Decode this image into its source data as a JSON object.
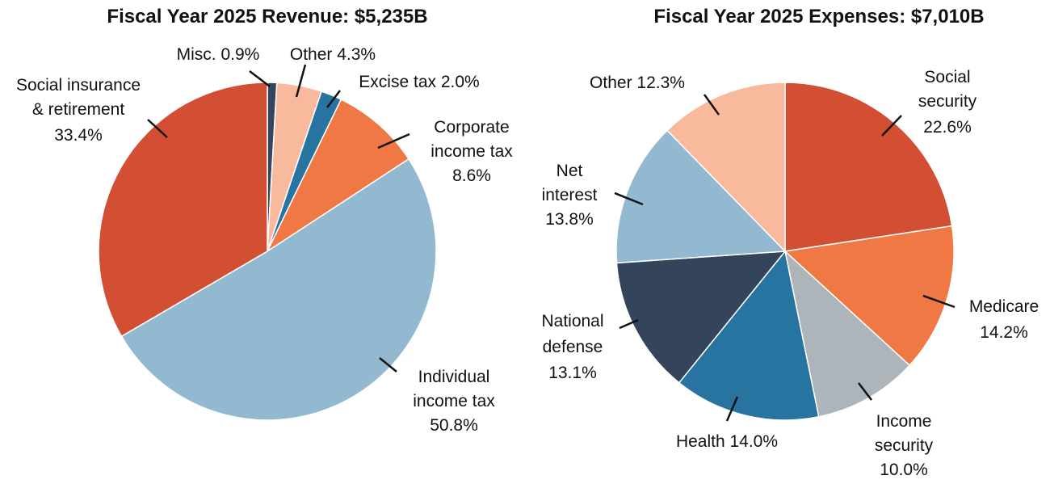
{
  "chart_data": [
    {
      "type": "pie",
      "title": "Fiscal Year 2025 Revenue: $5,235B",
      "start": "top",
      "direction": "clockwise",
      "slices": [
        {
          "name": "Misc.",
          "value": 0.9,
          "color": "#34445a",
          "label_lines": [
            "Misc. 0.9%"
          ]
        },
        {
          "name": "Other",
          "value": 4.3,
          "color": "#f8b99d",
          "label_lines": [
            "Other 4.3%"
          ]
        },
        {
          "name": "Excise tax",
          "value": 2.0,
          "color": "#26749f",
          "label_lines": [
            "Excise tax 2.0%"
          ]
        },
        {
          "name": "Corporate income tax",
          "value": 8.6,
          "color": "#f07844",
          "label_lines": [
            "Corporate",
            "income tax",
            "8.6%"
          ]
        },
        {
          "name": "Individual income tax",
          "value": 50.8,
          "color": "#93b9d0",
          "label_lines": [
            "Individual",
            "income tax",
            "50.8%"
          ]
        },
        {
          "name": "Social insurance & retirement",
          "value": 33.4,
          "color": "#d34f33",
          "label_lines": [
            "Social insurance",
            "& retirement",
            "33.4%"
          ]
        }
      ]
    },
    {
      "type": "pie",
      "title": "Fiscal Year 2025 Expenses: $7,010B",
      "start": "top",
      "direction": "clockwise",
      "slices": [
        {
          "name": "Social security",
          "value": 22.6,
          "color": "#d34f33",
          "label_lines": [
            "Social",
            "security",
            "22.6%"
          ]
        },
        {
          "name": "Medicare",
          "value": 14.2,
          "color": "#f07844",
          "label_lines": [
            "Medicare",
            "14.2%"
          ]
        },
        {
          "name": "Income security",
          "value": 10.0,
          "color": "#adb4ba",
          "label_lines": [
            "Income",
            "security",
            "10.0%"
          ]
        },
        {
          "name": "Health",
          "value": 14.0,
          "color": "#26749f",
          "label_lines": [
            "Health 14.0%"
          ]
        },
        {
          "name": "National defense",
          "value": 13.1,
          "color": "#34445a",
          "label_lines": [
            "National",
            "defense",
            "13.1%"
          ]
        },
        {
          "name": "Net interest",
          "value": 13.8,
          "color": "#93b9d0",
          "label_lines": [
            "Net",
            "interest",
            "13.8%"
          ]
        },
        {
          "name": "Other",
          "value": 12.3,
          "color": "#f8b99d",
          "label_lines": [
            "Other 12.3%"
          ]
        }
      ]
    }
  ]
}
